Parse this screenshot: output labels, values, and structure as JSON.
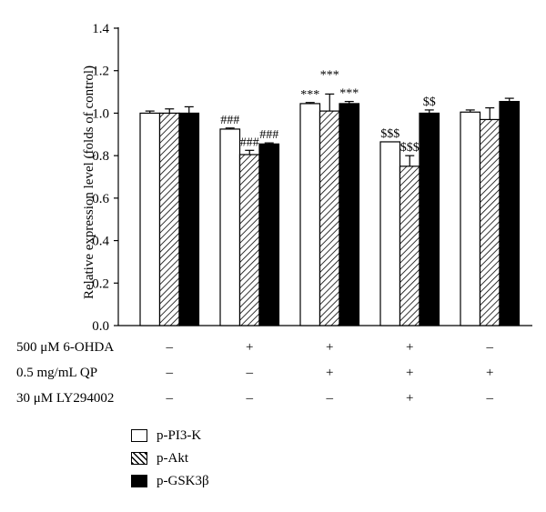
{
  "chart_data": {
    "type": "bar",
    "ylabel": "Relative expression level (folds of control)",
    "ylim": [
      0,
      1.4
    ],
    "yticks": [
      "0.0",
      "0.2",
      "0.4",
      "0.6",
      "0.8",
      "1.0",
      "1.2",
      "1.4"
    ],
    "groups": 5,
    "series": [
      {
        "name": "p-PI3-K",
        "pattern": "white",
        "values": [
          1.0,
          0.925,
          1.045,
          0.865,
          1.005
        ],
        "errors": [
          0.01,
          0.005,
          0.005,
          0.0,
          0.01
        ]
      },
      {
        "name": "p-Akt",
        "pattern": "hatch",
        "values": [
          1.0,
          0.805,
          1.01,
          0.75,
          0.97
        ],
        "errors": [
          0.02,
          0.02,
          0.08,
          0.05,
          0.055
        ]
      },
      {
        "name": "p-GSK3β",
        "pattern": "black",
        "values": [
          1.0,
          0.855,
          1.045,
          1.0,
          1.055
        ],
        "errors": [
          0.03,
          0.005,
          0.01,
          0.015,
          0.015
        ]
      }
    ],
    "annotations": [
      {
        "group": 1,
        "series": 0,
        "text": "###"
      },
      {
        "group": 1,
        "series": 1,
        "text": "###"
      },
      {
        "group": 1,
        "series": 2,
        "text": "###"
      },
      {
        "group": 2,
        "series": 0,
        "text": "***"
      },
      {
        "group": 2,
        "series": 1,
        "text": "***"
      },
      {
        "group": 2,
        "series": 2,
        "text": "***"
      },
      {
        "group": 3,
        "series": 0,
        "text": "$$$"
      },
      {
        "group": 3,
        "series": 1,
        "text": "$$$"
      },
      {
        "group": 3,
        "series": 2,
        "text": "$$"
      }
    ],
    "treatments": [
      {
        "label": "500 μM 6-OHDA",
        "signs": [
          "–",
          "+",
          "+",
          "+",
          "–"
        ]
      },
      {
        "label": "0.5 mg/mL QP",
        "signs": [
          "–",
          "–",
          "+",
          "+",
          "+"
        ]
      },
      {
        "label": "30 μM LY294002",
        "signs": [
          "–",
          "–",
          "–",
          "+",
          "–"
        ]
      }
    ],
    "legend": [
      {
        "label": "p-PI3-K",
        "pattern": "white"
      },
      {
        "label": "p-Akt",
        "pattern": "hatch"
      },
      {
        "label": "p-GSK3β",
        "pattern": "black"
      }
    ]
  }
}
